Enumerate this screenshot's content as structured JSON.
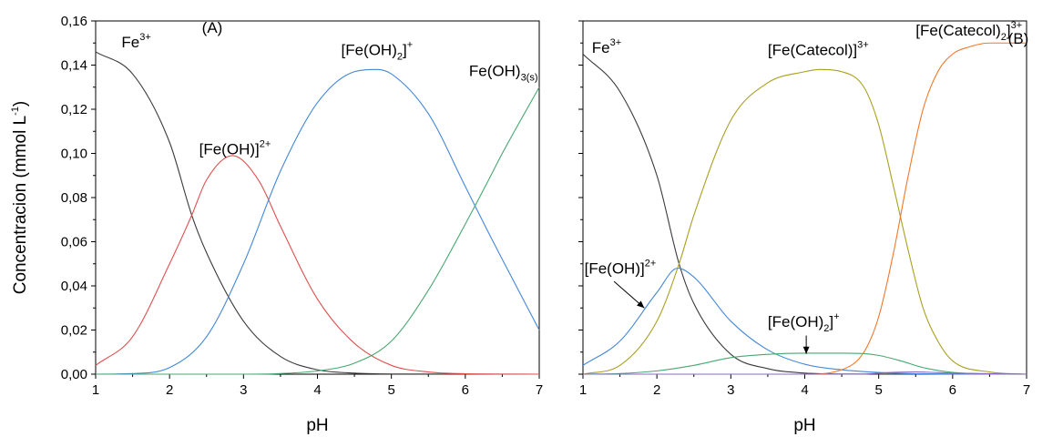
{
  "chart_data": [
    {
      "type": "line",
      "panel_label": "(A)",
      "xlabel": "pH",
      "ylabel": "Concentracion (mmol L",
      "ylabel_sup": "-1",
      "ylabel_close": ")",
      "xlim": [
        1,
        7
      ],
      "ylim": [
        0,
        0.16
      ],
      "x_ticks": [
        1,
        2,
        3,
        4,
        5,
        6,
        7
      ],
      "y_ticks": [
        0,
        0.02,
        0.04,
        0.06,
        0.08,
        0.1,
        0.12,
        0.14,
        0.16
      ],
      "y_tick_labels": [
        "0,00",
        "0,02",
        "0,04",
        "0,06",
        "0,08",
        "0,10",
        "0,12",
        "0,14",
        "0,16"
      ],
      "series": [
        {
          "key": "fe3",
          "color": "#3a3a3a",
          "x": [
            1,
            1.5,
            2,
            2.3,
            2.5,
            3,
            3.5,
            4,
            4.5,
            5,
            7
          ],
          "y": [
            0.146,
            0.136,
            0.105,
            0.072,
            0.055,
            0.024,
            0.008,
            0.002,
            0.0005,
            0.0001,
            0
          ]
        },
        {
          "key": "feoh",
          "color": "#e05050",
          "x": [
            1,
            1.5,
            2,
            2.3,
            2.5,
            2.85,
            3.2,
            3.5,
            4,
            4.5,
            5,
            5.5,
            6,
            7
          ],
          "y": [
            0.004,
            0.017,
            0.05,
            0.072,
            0.088,
            0.099,
            0.088,
            0.067,
            0.034,
            0.014,
            0.004,
            0.001,
            0.0002,
            0
          ]
        },
        {
          "key": "feoh2",
          "color": "#4488d8",
          "x": [
            1,
            1.5,
            2,
            2.5,
            3,
            3.5,
            4,
            4.5,
            4.8,
            5,
            5.5,
            6,
            6.3,
            6.5,
            7
          ],
          "y": [
            0,
            0.0003,
            0.003,
            0.017,
            0.05,
            0.092,
            0.123,
            0.137,
            0.138,
            0.136,
            0.118,
            0.085,
            0.065,
            0.052,
            0.02
          ]
        },
        {
          "key": "feoh3",
          "color": "#48a870",
          "x": [
            1,
            3,
            3.5,
            4,
            4.5,
            5,
            5.5,
            6,
            6.3,
            6.5,
            7
          ],
          "y": [
            0,
            0,
            0.0003,
            0.0015,
            0.005,
            0.015,
            0.038,
            0.068,
            0.087,
            0.1,
            0.13
          ]
        }
      ],
      "labels": [
        {
          "text": "Fe",
          "sup": "3+",
          "sub": "",
          "x": 1.35,
          "y": 0.148
        },
        {
          "text": "[Fe(OH)]",
          "sup": "2+",
          "sub": "",
          "x": 2.4,
          "y": 0.0995
        },
        {
          "text": "[Fe(OH)",
          "sub": "2",
          "close": "]",
          "sup": "+",
          "x": 4.32,
          "y": 0.1445
        },
        {
          "text": "Fe(OH)",
          "sub": "3(s)",
          "sup": "",
          "x": 6.05,
          "y": 0.135
        }
      ],
      "arrows": []
    },
    {
      "type": "line",
      "panel_label": "(B)",
      "xlabel": "pH",
      "ylabel": "",
      "xlim": [
        1,
        7
      ],
      "ylim": [
        0,
        0.16
      ],
      "x_ticks": [
        1,
        2,
        3,
        4,
        5,
        6,
        7
      ],
      "y_ticks": [
        0,
        0.02,
        0.04,
        0.06,
        0.08,
        0.1,
        0.12,
        0.14,
        0.16
      ],
      "series": [
        {
          "key": "fe3",
          "color": "#3a3a3a",
          "x": [
            1,
            1.5,
            2,
            2.3,
            2.5,
            3,
            3.5,
            4,
            4.5,
            7
          ],
          "y": [
            0.145,
            0.128,
            0.09,
            0.05,
            0.032,
            0.009,
            0.0025,
            0.0005,
            0.0001,
            0
          ]
        },
        {
          "key": "feoh",
          "color": "#4488d8",
          "x": [
            1,
            1.5,
            2,
            2.28,
            2.5,
            3,
            3.5,
            4,
            4.5,
            5,
            5.5,
            7
          ],
          "y": [
            0.004,
            0.015,
            0.037,
            0.048,
            0.044,
            0.024,
            0.011,
            0.0045,
            0.002,
            0.0008,
            0.0002,
            0
          ]
        },
        {
          "key": "fecat",
          "color": "#a8a020",
          "x": [
            1,
            1.5,
            2,
            2.3,
            2.5,
            3,
            3.5,
            4,
            4.2,
            4.5,
            4.8,
            5,
            5.2,
            5.4,
            5.6,
            5.8,
            6,
            6.5,
            7
          ],
          "y": [
            0,
            0.004,
            0.024,
            0.05,
            0.072,
            0.115,
            0.132,
            0.137,
            0.138,
            0.137,
            0.13,
            0.113,
            0.085,
            0.056,
            0.03,
            0.015,
            0.006,
            0.001,
            0
          ]
        },
        {
          "key": "feoh2",
          "color": "#48a870",
          "x": [
            1,
            1.5,
            2,
            2.5,
            3,
            3.5,
            4,
            4.5,
            4.8,
            5,
            5.3,
            5.6,
            6,
            6.5,
            7
          ],
          "y": [
            0,
            0.0003,
            0.0015,
            0.004,
            0.0075,
            0.009,
            0.0095,
            0.0095,
            0.0093,
            0.0085,
            0.006,
            0.003,
            0.0008,
            0.0001,
            0
          ]
        },
        {
          "key": "fecat2",
          "color": "#f07828",
          "x": [
            1,
            4,
            4.5,
            4.8,
            5,
            5.2,
            5.4,
            5.6,
            5.8,
            6,
            6.2,
            6.5,
            7
          ],
          "y": [
            0,
            0,
            0.002,
            0.01,
            0.026,
            0.055,
            0.09,
            0.12,
            0.137,
            0.145,
            0.148,
            0.15,
            0.15
          ]
        },
        {
          "key": "trace",
          "color": "#8868c0",
          "x": [
            1,
            4.8,
            5,
            5.5,
            6,
            7
          ],
          "y": [
            0,
            0,
            0.0005,
            0.001,
            0.0005,
            0
          ]
        }
      ],
      "labels": [
        {
          "text": "Fe",
          "sup": "3+",
          "sub": "",
          "x": 1.12,
          "y": 0.1455
        },
        {
          "text": "[Fe(Catecol)]",
          "sup": "3+",
          "sub": "",
          "x": 3.5,
          "y": 0.1445
        },
        {
          "text": "[Fe(Catecol)",
          "sub": "2",
          "close": "]",
          "sup": "3+",
          "x": 5.5,
          "y": 0.1535
        },
        {
          "text": "[Fe(OH)]",
          "sup": "2+",
          "sub": "",
          "x": 1.02,
          "y": 0.0455
        },
        {
          "text": "[Fe(OH)",
          "sub": "2",
          "close": "]",
          "sup": "+",
          "x": 3.5,
          "y": 0.0215
        }
      ],
      "arrows": [
        {
          "from": [
            1.42,
            0.042
          ],
          "to": [
            1.83,
            0.03
          ]
        },
        {
          "from": [
            4.02,
            0.0175
          ],
          "to": [
            4.02,
            0.0092
          ]
        }
      ]
    }
  ]
}
